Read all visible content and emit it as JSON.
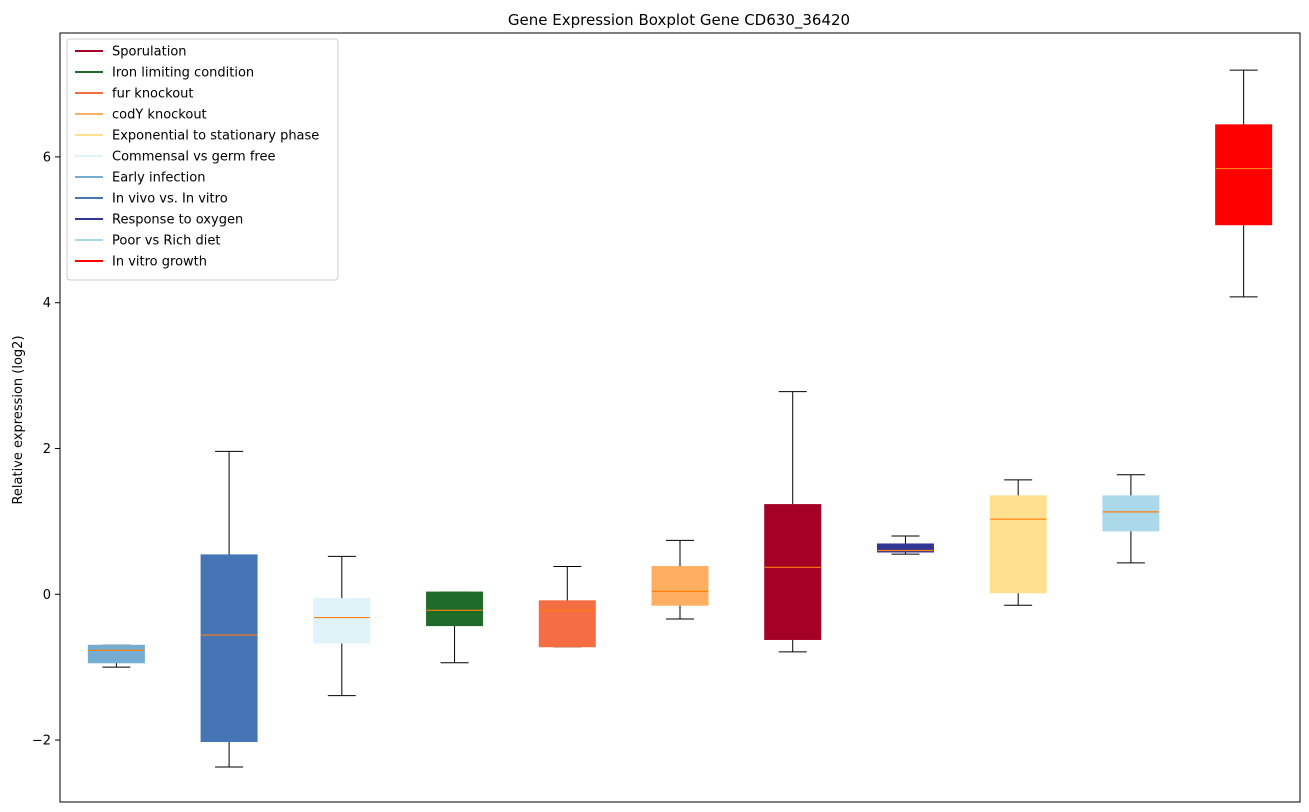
{
  "chart_data": {
    "type": "boxplot",
    "title": "Gene Expression Boxplot Gene CD630_36420",
    "xlabel": "",
    "ylabel": "Relative expression (log2)",
    "ylim": [
      -2.85,
      7.7
    ],
    "yticks": [
      -2,
      0,
      2,
      4,
      6
    ],
    "ytick_labels": [
      "−2",
      "0",
      "2",
      "4",
      "6"
    ],
    "grid": false,
    "legend_position": "upper-left",
    "legend": [
      {
        "label": "Sporulation",
        "color": "#a50026"
      },
      {
        "label": "Iron limiting condition",
        "color": "#1f6b2a"
      },
      {
        "label": "fur knockout",
        "color": "#f46d43"
      },
      {
        "label": "codY knockout",
        "color": "#fdae61"
      },
      {
        "label": "Exponential to stationary phase",
        "color": "#fee090"
      },
      {
        "label": "Commensal vs germ free",
        "color": "#e0f3f8"
      },
      {
        "label": "Early infection",
        "color": "#74add1"
      },
      {
        "label": "In vivo vs. In vitro",
        "color": "#4575b4"
      },
      {
        "label": "Response to oxygen",
        "color": "#313695"
      },
      {
        "label": "Poor vs Rich diet",
        "color": "#abd9e9"
      },
      {
        "label": "In vitro growth",
        "color": "#ff0000"
      }
    ],
    "median_color": "#ff7f0e",
    "boxes": [
      {
        "group": "Early infection",
        "color": "#74add1",
        "whisker_low": -1.0,
        "q1": -0.94,
        "median": -0.77,
        "q3": -0.7,
        "whisker_high": -0.7
      },
      {
        "group": "In vivo vs. In vitro",
        "color": "#4575b4",
        "whisker_low": -2.37,
        "q1": -2.02,
        "median": -0.56,
        "q3": 0.54,
        "whisker_high": 1.96
      },
      {
        "group": "Commensal vs germ free",
        "color": "#e0f3f8",
        "whisker_low": -1.39,
        "q1": -0.67,
        "median": -0.32,
        "q3": -0.06,
        "whisker_high": 0.52
      },
      {
        "group": "Iron limiting condition",
        "color": "#1f6b2a",
        "whisker_low": -0.94,
        "q1": -0.43,
        "median": -0.22,
        "q3": 0.03,
        "whisker_high": 0.03
      },
      {
        "group": "fur knockout",
        "color": "#f46d43",
        "whisker_low": -0.72,
        "q1": -0.72,
        "median": -0.22,
        "q3": -0.09,
        "whisker_high": 0.38
      },
      {
        "group": "codY knockout",
        "color": "#fdae61",
        "whisker_low": -0.34,
        "q1": -0.15,
        "median": 0.04,
        "q3": 0.38,
        "whisker_high": 0.74
      },
      {
        "group": "Sporulation",
        "color": "#a50026",
        "whisker_low": -0.79,
        "q1": -0.62,
        "median": 0.37,
        "q3": 1.23,
        "whisker_high": 2.78
      },
      {
        "group": "Response to oxygen",
        "color": "#313695",
        "whisker_low": 0.55,
        "q1": 0.58,
        "median": 0.6,
        "q3": 0.69,
        "whisker_high": 0.8
      },
      {
        "group": "Exponential to stationary phase",
        "color": "#fee090",
        "whisker_low": -0.15,
        "q1": 0.02,
        "median": 1.03,
        "q3": 1.35,
        "whisker_high": 1.57
      },
      {
        "group": "Poor vs Rich diet",
        "color": "#abd9e9",
        "whisker_low": 0.43,
        "q1": 0.87,
        "median": 1.13,
        "q3": 1.35,
        "whisker_high": 1.64
      },
      {
        "group": "In vitro growth",
        "color": "#ff0000",
        "whisker_low": 4.08,
        "q1": 5.07,
        "median": 5.84,
        "q3": 6.44,
        "whisker_high": 7.19
      }
    ]
  }
}
